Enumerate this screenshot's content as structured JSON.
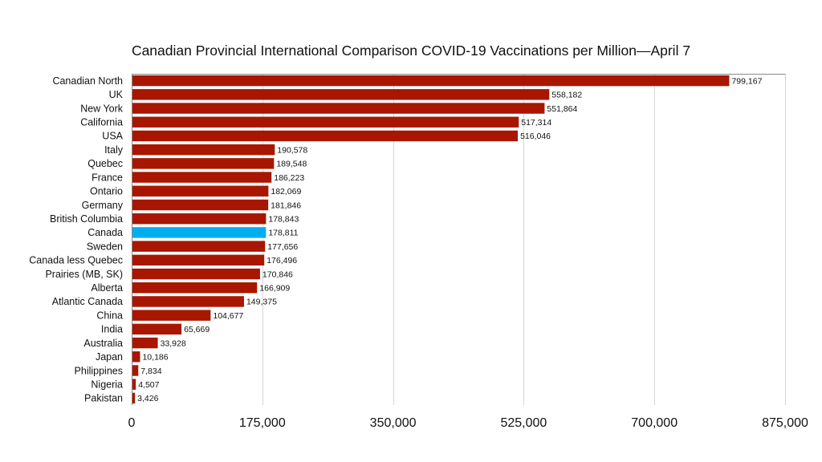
{
  "chart_data": {
    "type": "bar",
    "orientation": "horizontal",
    "title": "Canadian Provincial International Comparison COVID-19 Vaccinations per Million—April 7",
    "xlabel": "",
    "ylabel": "",
    "xlim": [
      0,
      875000
    ],
    "xticks": [
      0,
      175000,
      350000,
      525000,
      700000,
      875000
    ],
    "xtick_labels": [
      "0",
      "175,000",
      "350,000",
      "525,000",
      "700,000",
      "875,000"
    ],
    "grid": "vertical",
    "legend": "none",
    "categories": [
      "Canadian North",
      "UK",
      "New York",
      "California",
      "USA",
      "Italy",
      "Quebec ",
      "France",
      "Ontario ",
      "Germany",
      "British Columbia ",
      "Canada",
      "Sweden",
      "Canada less Quebec ",
      "Prairies (MB, SK)",
      "Alberta",
      "Atlantic Canada ",
      "China",
      "India",
      "Australia",
      "Japan",
      "Philippines",
      "Nigeria",
      "Pakistan"
    ],
    "values": [
      799167,
      558182,
      551864,
      517314,
      516046,
      190578,
      189548,
      186223,
      182069,
      181846,
      178843,
      178811,
      177656,
      176496,
      170846,
      166909,
      149375,
      104677,
      65669,
      33928,
      10186,
      7834,
      4507,
      3426
    ],
    "value_labels": [
      "799,167",
      "558,182",
      "551,864",
      "517,314",
      "516,046",
      "190,578",
      "189,548",
      "186,223",
      "182,069",
      "181,846",
      "178,843",
      "178,811",
      "177,656",
      "176,496",
      "170,846",
      "166,909",
      "149,375",
      "104,677",
      "65,669",
      "33,928",
      "10,186",
      "7,834",
      "4,507",
      "3,426"
    ],
    "highlight": "Canada",
    "colors": {
      "bar": "#a81600",
      "highlight": "#00aeef",
      "grid": "#d6d6d6",
      "axis": "#8a8a8a"
    }
  }
}
